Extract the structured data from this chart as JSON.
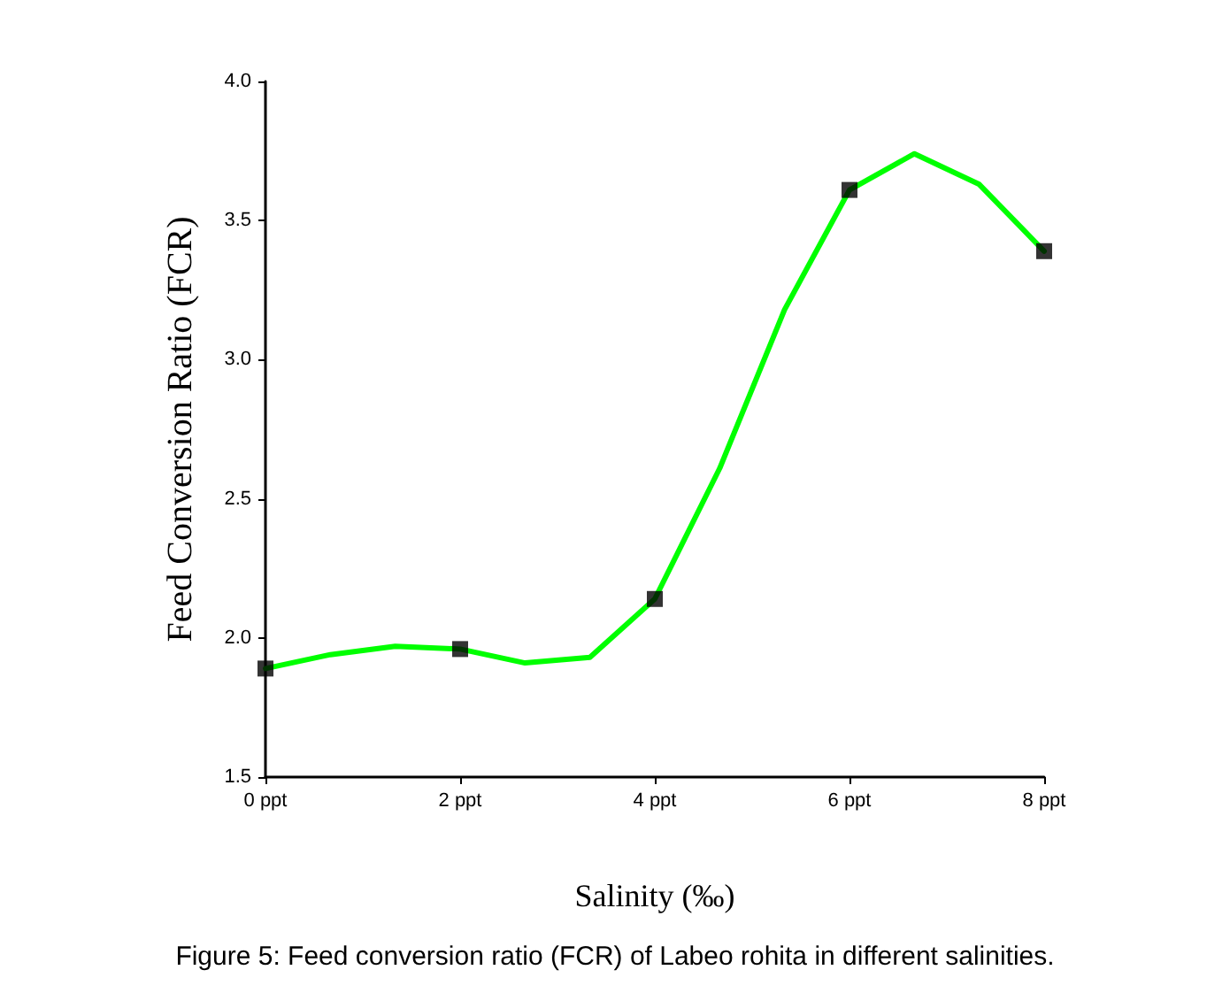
{
  "chart_data": {
    "type": "line",
    "title": "Figure 5: Feed conversion ratio (FCR) of Labeo rohita in different salinities.",
    "xlabel": "Salinity (‰)",
    "ylabel": "Feed Conversion Ratio (FCR)",
    "series": [
      {
        "color": "#00ff00",
        "marker": "none",
        "x": [
          0,
          0.667,
          1.333,
          2,
          2.667,
          3.333,
          4,
          4.667,
          5.333,
          6,
          6.667,
          7.333,
          8
        ],
        "values": [
          1.89,
          1.94,
          1.97,
          1.96,
          1.91,
          1.93,
          2.14,
          2.61,
          3.18,
          3.61,
          3.74,
          3.63,
          3.39
        ]
      },
      {
        "type": "scatter",
        "color": "#000000",
        "marker": "square",
        "x": [
          0,
          2,
          4,
          6,
          8
        ],
        "values": [
          1.89,
          1.96,
          2.14,
          3.61,
          3.39
        ]
      }
    ],
    "xlim": [
      0,
      8
    ],
    "xticks": [
      {
        "value": 0,
        "label": "0 ppt"
      },
      {
        "value": 2,
        "label": "2 ppt"
      },
      {
        "value": 4,
        "label": "4 ppt"
      },
      {
        "value": 6,
        "label": "6 ppt"
      },
      {
        "value": 8,
        "label": "8 ppt"
      }
    ],
    "ylim": [
      1.5,
      4
    ],
    "yticks": [
      {
        "value": 1.5,
        "label": "1.5"
      },
      {
        "value": 2,
        "label": "2.0"
      },
      {
        "value": 2.5,
        "label": "2.5"
      },
      {
        "value": 3,
        "label": "3.0"
      },
      {
        "value": 3.5,
        "label": "3.5"
      },
      {
        "value": 4,
        "label": "4.0"
      }
    ],
    "grid": false
  }
}
